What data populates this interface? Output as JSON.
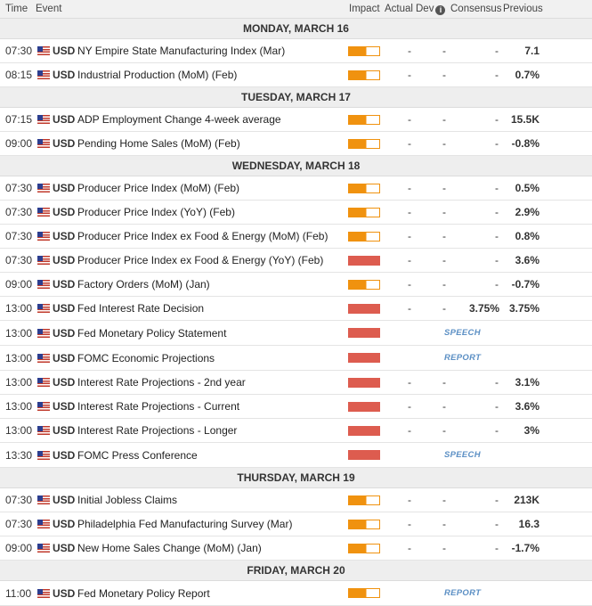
{
  "header": {
    "time": "Time",
    "event": "Event",
    "impact": "Impact",
    "actual": "Actual",
    "dev": "Dev",
    "consensus": "Consensus",
    "previous": "Previous"
  },
  "colors": {
    "medium_impact": "#f0920f",
    "high_impact": "#dd5c4f",
    "tag": "#5b8fc4"
  },
  "days": [
    {
      "label": "MONDAY, MARCH 16",
      "events": [
        {
          "time": "07:30",
          "currency": "USD",
          "event": "NY Empire State Manufacturing Index (Mar)",
          "impact": "medium",
          "actual": "-",
          "dev": "-",
          "consensus": "-",
          "previous": "7.1"
        },
        {
          "time": "08:15",
          "currency": "USD",
          "event": "Industrial Production (MoM) (Feb)",
          "impact": "medium",
          "actual": "-",
          "dev": "-",
          "consensus": "-",
          "previous": "0.7%"
        }
      ]
    },
    {
      "label": "TUESDAY, MARCH 17",
      "events": [
        {
          "time": "07:15",
          "currency": "USD",
          "event": "ADP Employment Change 4-week average",
          "impact": "medium",
          "actual": "-",
          "dev": "-",
          "consensus": "-",
          "previous": "15.5K"
        },
        {
          "time": "09:00",
          "currency": "USD",
          "event": "Pending Home Sales (MoM) (Feb)",
          "impact": "medium",
          "actual": "-",
          "dev": "-",
          "consensus": "-",
          "previous": "-0.8%"
        }
      ]
    },
    {
      "label": "WEDNESDAY, MARCH 18",
      "events": [
        {
          "time": "07:30",
          "currency": "USD",
          "event": "Producer Price Index (MoM) (Feb)",
          "impact": "medium",
          "actual": "-",
          "dev": "-",
          "consensus": "-",
          "previous": "0.5%"
        },
        {
          "time": "07:30",
          "currency": "USD",
          "event": "Producer Price Index (YoY) (Feb)",
          "impact": "medium",
          "actual": "-",
          "dev": "-",
          "consensus": "-",
          "previous": "2.9%"
        },
        {
          "time": "07:30",
          "currency": "USD",
          "event": "Producer Price Index ex Food & Energy (MoM) (Feb)",
          "impact": "medium",
          "actual": "-",
          "dev": "-",
          "consensus": "-",
          "previous": "0.8%"
        },
        {
          "time": "07:30",
          "currency": "USD",
          "event": "Producer Price Index ex Food & Energy (YoY) (Feb)",
          "impact": "high",
          "actual": "-",
          "dev": "-",
          "consensus": "-",
          "previous": "3.6%"
        },
        {
          "time": "09:00",
          "currency": "USD",
          "event": "Factory Orders (MoM) (Jan)",
          "impact": "medium",
          "actual": "-",
          "dev": "-",
          "consensus": "-",
          "previous": "-0.7%"
        },
        {
          "time": "13:00",
          "currency": "USD",
          "event": "Fed Interest Rate Decision",
          "impact": "high",
          "actual": "-",
          "dev": "-",
          "consensus": "3.75%",
          "previous": "3.75%"
        },
        {
          "time": "13:00",
          "currency": "USD",
          "event": "Fed Monetary Policy Statement",
          "impact": "high",
          "tag": "SPEECH"
        },
        {
          "time": "13:00",
          "currency": "USD",
          "event": "FOMC Economic Projections",
          "impact": "high",
          "tag": "REPORT"
        },
        {
          "time": "13:00",
          "currency": "USD",
          "event": "Interest Rate Projections - 2nd year",
          "impact": "high",
          "actual": "-",
          "dev": "-",
          "consensus": "-",
          "previous": "3.1%"
        },
        {
          "time": "13:00",
          "currency": "USD",
          "event": "Interest Rate Projections - Current",
          "impact": "high",
          "actual": "-",
          "dev": "-",
          "consensus": "-",
          "previous": "3.6%"
        },
        {
          "time": "13:00",
          "currency": "USD",
          "event": "Interest Rate Projections - Longer",
          "impact": "high",
          "actual": "-",
          "dev": "-",
          "consensus": "-",
          "previous": "3%"
        },
        {
          "time": "13:30",
          "currency": "USD",
          "event": "FOMC Press Conference",
          "impact": "high",
          "tag": "SPEECH"
        }
      ]
    },
    {
      "label": "THURSDAY, MARCH 19",
      "events": [
        {
          "time": "07:30",
          "currency": "USD",
          "event": "Initial Jobless Claims",
          "impact": "medium",
          "actual": "-",
          "dev": "-",
          "consensus": "-",
          "previous": "213K"
        },
        {
          "time": "07:30",
          "currency": "USD",
          "event": "Philadelphia Fed Manufacturing Survey (Mar)",
          "impact": "medium",
          "actual": "-",
          "dev": "-",
          "consensus": "-",
          "previous": "16.3"
        },
        {
          "time": "09:00",
          "currency": "USD",
          "event": "New Home Sales Change (MoM) (Jan)",
          "impact": "medium",
          "actual": "-",
          "dev": "-",
          "consensus": "-",
          "previous": "-1.7%"
        }
      ]
    },
    {
      "label": "FRIDAY, MARCH 20",
      "events": [
        {
          "time": "11:00",
          "currency": "USD",
          "event": "Fed Monetary Policy Report",
          "impact": "medium",
          "tag": "REPORT"
        }
      ]
    }
  ]
}
